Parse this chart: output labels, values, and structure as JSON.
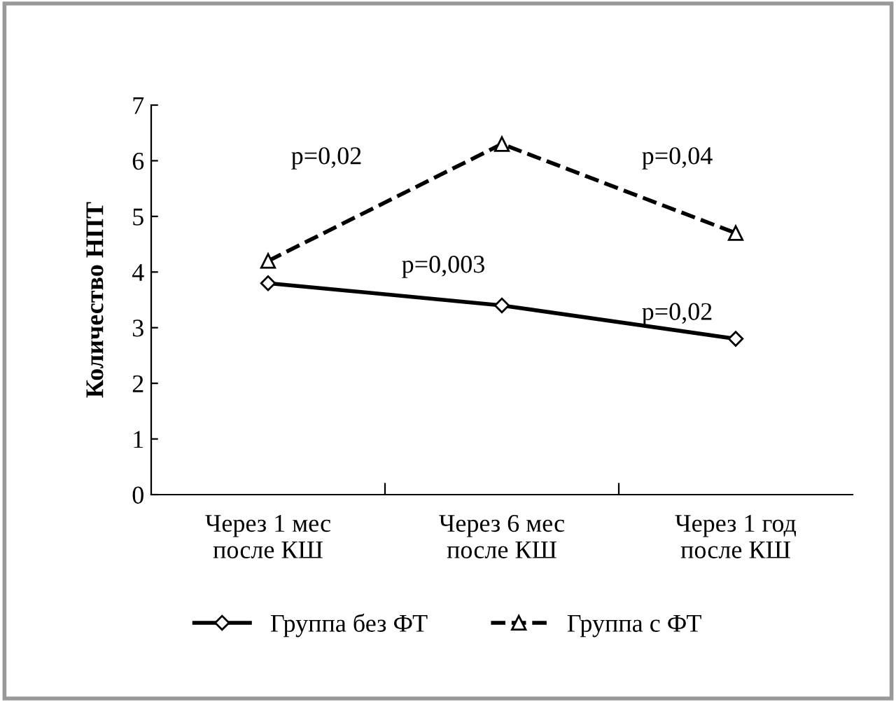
{
  "chart_data": {
    "type": "line",
    "ylabel": "Количество НПТ",
    "categories": [
      "Через 1 мес\nпосле КШ",
      "Через 6 мес\nпосле КШ",
      "Через 1 год\nпосле КШ"
    ],
    "series": [
      {
        "name": "Группа без ФТ",
        "color": "#000000",
        "values": [
          3.8,
          3.4,
          2.8
        ],
        "marker": "diamond",
        "line_style": "solid"
      },
      {
        "name": "Группа с ФТ",
        "color": "#000000",
        "values": [
          4.2,
          6.3,
          4.7
        ],
        "marker": "triangle",
        "line_style": "dashed"
      }
    ],
    "ylim": [
      0,
      7
    ],
    "yticks": [
      0,
      1,
      2,
      3,
      4,
      5,
      6,
      7
    ],
    "grid": false,
    "legend": "bottom",
    "annotations": [
      "p=0,02",
      "p=0,04",
      "p=0,003",
      "p=0,02"
    ]
  }
}
